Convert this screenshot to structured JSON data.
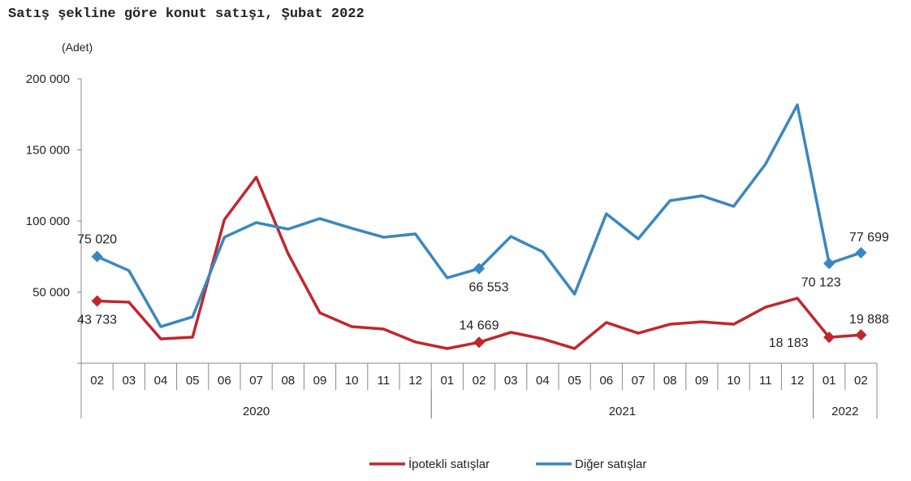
{
  "chart_data": {
    "type": "line",
    "title": "Satış şekline göre konut satışı, Şubat 2022",
    "ylabel": "(Adet)",
    "ylim": [
      0,
      200000
    ],
    "yticks": [
      50000,
      100000,
      150000,
      200000
    ],
    "ytick_labels": [
      "50 000",
      "100 000",
      "150 000",
      "200 000"
    ],
    "categories": [
      "02",
      "03",
      "04",
      "05",
      "06",
      "07",
      "08",
      "09",
      "10",
      "11",
      "12",
      "01",
      "02",
      "03",
      "04",
      "05",
      "06",
      "07",
      "08",
      "09",
      "10",
      "11",
      "12",
      "01",
      "02"
    ],
    "year_groups": [
      {
        "label": "2020",
        "start": 0,
        "end": 10
      },
      {
        "label": "2021",
        "start": 11,
        "end": 22
      },
      {
        "label": "2022",
        "start": 23,
        "end": 24
      }
    ],
    "series": [
      {
        "name": "İpotekli satışlar",
        "color": "#C0272D",
        "values": [
          43733,
          42900,
          17100,
          18300,
          101000,
          130800,
          77100,
          35400,
          25700,
          24000,
          14900,
          10300,
          14669,
          21700,
          17100,
          10300,
          28600,
          21100,
          27400,
          29100,
          27400,
          39400,
          45700,
          18183,
          19888
        ],
        "labels": [
          {
            "index": 0,
            "text": "43 733"
          },
          {
            "index": 12,
            "text": "14 669"
          },
          {
            "index": 23,
            "text": "18 183"
          },
          {
            "index": 24,
            "text": "19 888"
          }
        ]
      },
      {
        "name": "Diğer satışlar",
        "color": "#3A87C0",
        "values": [
          75020,
          65100,
          25700,
          32600,
          88600,
          98900,
          94300,
          101700,
          94900,
          88600,
          90900,
          60000,
          66553,
          89100,
          78300,
          48600,
          105100,
          87400,
          114300,
          117700,
          110300,
          140000,
          181700,
          70123,
          77699
        ],
        "labels": [
          {
            "index": 0,
            "text": "75 020"
          },
          {
            "index": 12,
            "text": "66 553"
          },
          {
            "index": 23,
            "text": "70 123"
          },
          {
            "index": 24,
            "text": "77 699"
          }
        ]
      }
    ],
    "legend": "bottom-center",
    "grid": false
  }
}
